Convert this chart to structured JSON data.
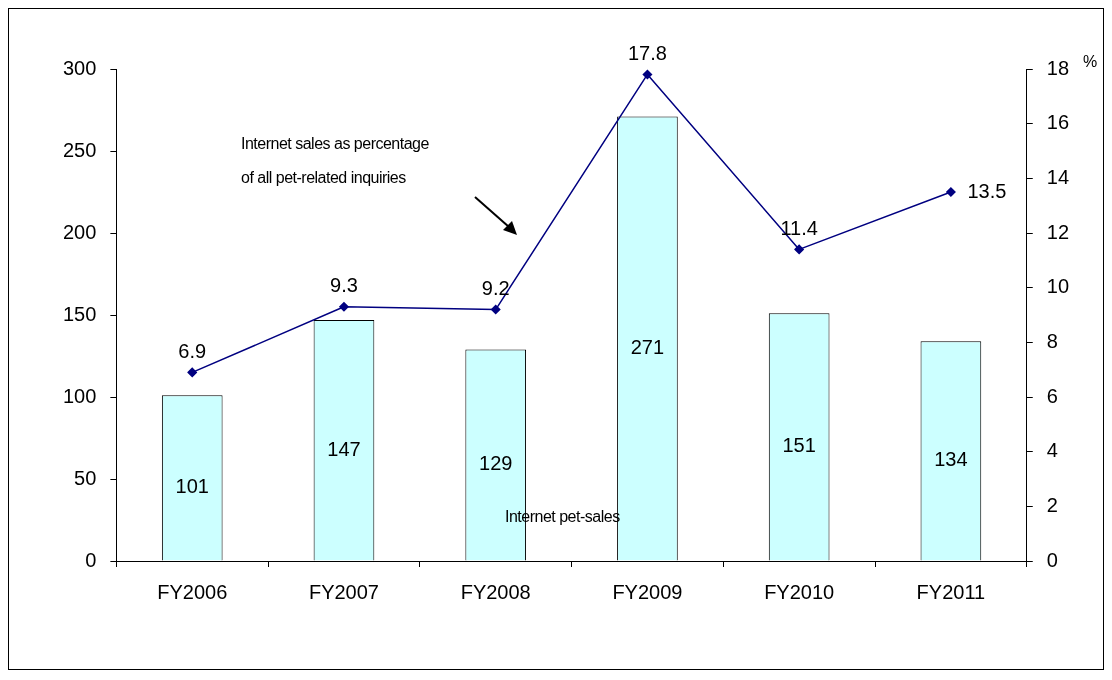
{
  "chart_data": {
    "type": "bar",
    "categories": [
      "FY2006",
      "FY2007",
      "FY2008",
      "FY2009",
      "FY2010",
      "FY2011"
    ],
    "series": [
      {
        "color": "#ccffff",
        "values": [
          101,
          147,
          129,
          271,
          151,
          134
        ]
      },
      {
        "type": "line",
        "axis": "y2",
        "color": "#000080",
        "marker": "diamond",
        "values": [
          6.9,
          9.3,
          9.2,
          17.8,
          11.4,
          13.5
        ]
      }
    ],
    "ylim": [
      0,
      300
    ],
    "yticks": [
      0,
      50,
      100,
      150,
      200,
      250,
      300
    ],
    "y2lim": [
      0,
      18
    ],
    "y2ticks": [
      0,
      2,
      4,
      6,
      8,
      10,
      12,
      14,
      16,
      18
    ],
    "y2label": "%",
    "grid": false,
    "legend": false,
    "data_labels": true,
    "annotations": [
      "Internet sales as percentage\nof all pet-related inquiries",
      "Internet pet-sales"
    ]
  }
}
